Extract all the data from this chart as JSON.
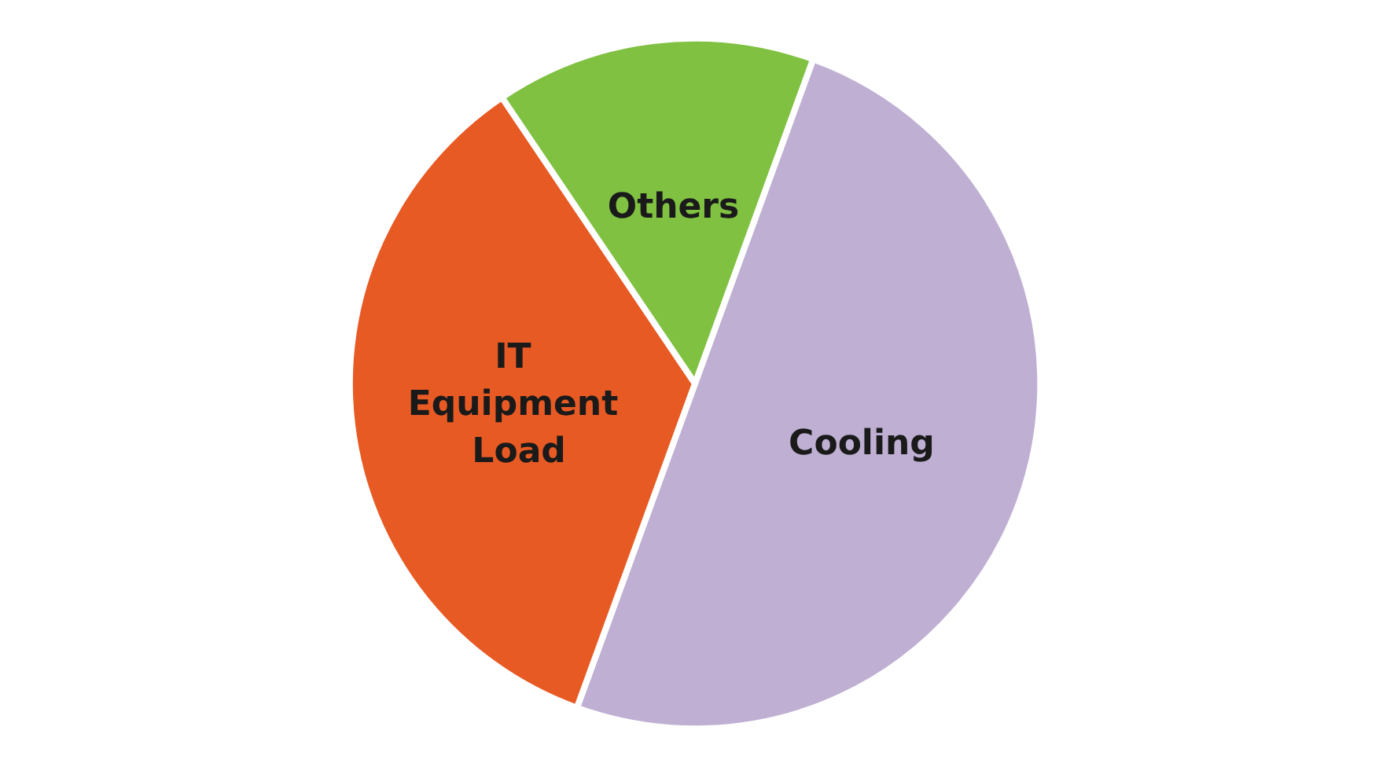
{
  "chart_data": {
    "type": "pie",
    "categories": [
      "Cooling",
      "IT Equipment Load",
      "Others"
    ],
    "values": [
      50,
      35,
      15
    ],
    "colors": [
      "#bfb0d3",
      "#e85a24",
      "#80c142"
    ],
    "legend": false
  }
}
